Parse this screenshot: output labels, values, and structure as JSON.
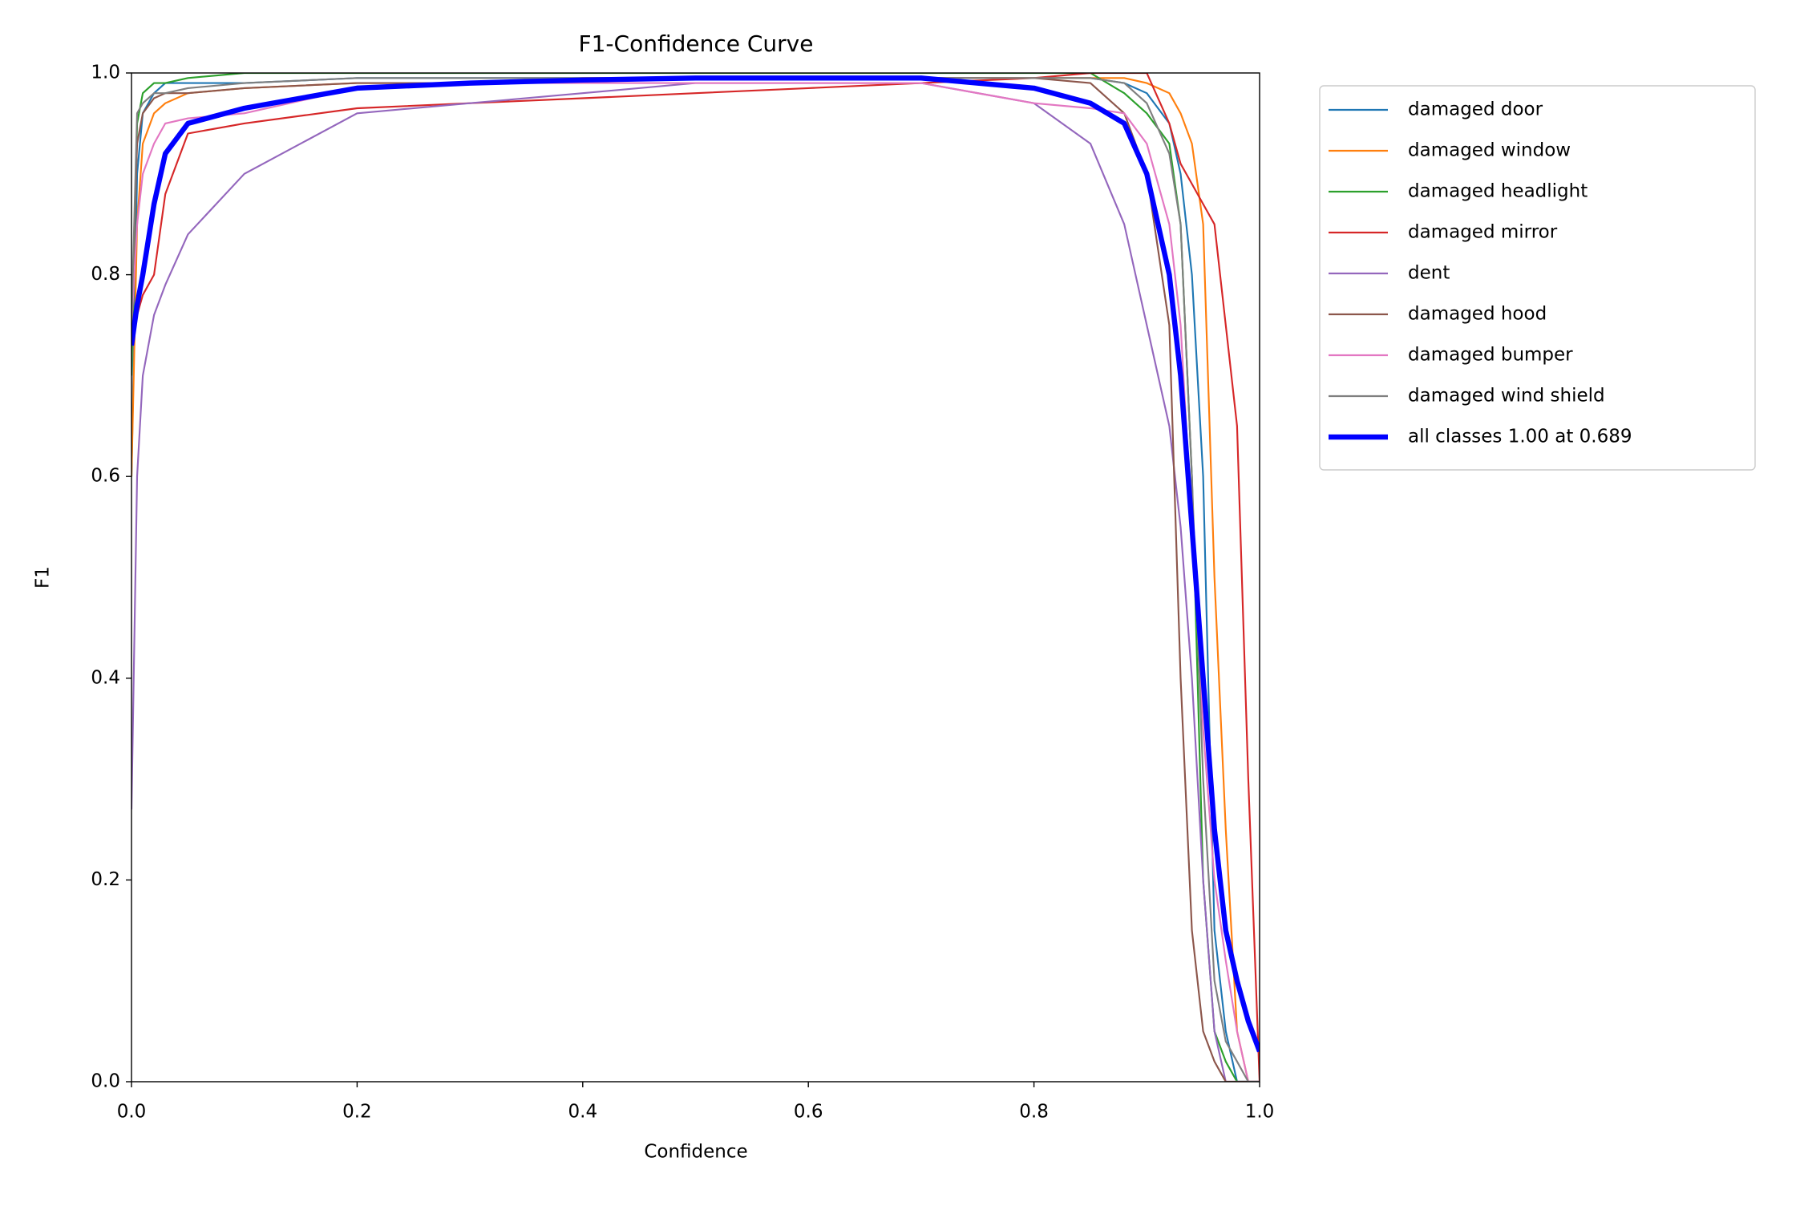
{
  "chart_data": {
    "type": "line",
    "title": "F1-Confidence Curve",
    "x_label": "Confidence",
    "y_label": "F1",
    "xlim": [
      0,
      1
    ],
    "ylim": [
      0,
      1
    ],
    "xticks": [
      {
        "value": 0,
        "label": "0.0"
      },
      {
        "value": 0.2,
        "label": "0.2"
      },
      {
        "value": 0.4,
        "label": "0.4"
      },
      {
        "value": 0.6,
        "label": "0.6"
      },
      {
        "value": 0.8,
        "label": "0.8"
      },
      {
        "value": 1,
        "label": "1.0"
      }
    ],
    "yticks": [
      {
        "value": 0,
        "label": "0.0"
      },
      {
        "value": 0.2,
        "label": "0.2"
      },
      {
        "value": 0.4,
        "label": "0.4"
      },
      {
        "value": 0.6,
        "label": "0.6"
      },
      {
        "value": 0.8,
        "label": "0.8"
      },
      {
        "value": 1,
        "label": "1.0"
      }
    ],
    "legend": "outside-upper-right",
    "x": [
      0,
      0.005,
      0.01,
      0.02,
      0.03,
      0.05,
      0.1,
      0.2,
      0.3,
      0.4,
      0.5,
      0.6,
      0.7,
      0.8,
      0.85,
      0.88,
      0.9,
      0.92,
      0.93,
      0.94,
      0.95,
      0.96,
      0.97,
      0.98,
      0.99,
      1.0
    ],
    "series": [
      {
        "name": "damaged door",
        "color": "#1f77b4",
        "width": 1.5,
        "values": [
          0.6,
          0.9,
          0.96,
          0.98,
          0.99,
          0.99,
          0.99,
          0.995,
          0.995,
          0.995,
          0.995,
          0.995,
          0.995,
          0.995,
          0.995,
          0.99,
          0.98,
          0.95,
          0.9,
          0.8,
          0.6,
          0.15,
          0.05,
          0,
          0,
          0
        ]
      },
      {
        "name": "damaged window",
        "color": "#ff7f0e",
        "width": 1.5,
        "values": [
          0.6,
          0.85,
          0.93,
          0.96,
          0.97,
          0.98,
          0.985,
          0.99,
          0.99,
          0.995,
          0.995,
          0.995,
          0.995,
          0.995,
          0.995,
          0.995,
          0.99,
          0.98,
          0.96,
          0.93,
          0.85,
          0.5,
          0.25,
          0.05,
          0,
          0
        ]
      },
      {
        "name": "damaged headlight",
        "color": "#2ca02c",
        "width": 1.5,
        "values": [
          0.7,
          0.95,
          0.98,
          0.99,
          0.99,
          0.995,
          1,
          1,
          1,
          1,
          1,
          1,
          1,
          1,
          1,
          0.98,
          0.96,
          0.93,
          0.85,
          0.6,
          0.2,
          0.05,
          0.02,
          0,
          0,
          0
        ]
      },
      {
        "name": "damaged mirror",
        "color": "#d62728",
        "width": 1.5,
        "values": [
          0.75,
          0.76,
          0.78,
          0.8,
          0.88,
          0.94,
          0.95,
          0.965,
          0.97,
          0.975,
          0.98,
          0.985,
          0.99,
          0.995,
          1,
          1,
          1,
          0.95,
          0.91,
          0.89,
          0.87,
          0.85,
          0.75,
          0.65,
          0.3,
          0
        ]
      },
      {
        "name": "dent",
        "color": "#9467bd",
        "width": 1.5,
        "values": [
          0.27,
          0.6,
          0.7,
          0.76,
          0.79,
          0.84,
          0.9,
          0.96,
          0.97,
          0.98,
          0.99,
          0.99,
          0.99,
          0.97,
          0.93,
          0.85,
          0.75,
          0.65,
          0.55,
          0.4,
          0.2,
          0.05,
          0,
          0,
          0,
          0
        ]
      },
      {
        "name": "damaged hood",
        "color": "#8c564b",
        "width": 1.5,
        "values": [
          0.75,
          0.93,
          0.96,
          0.975,
          0.98,
          0.98,
          0.985,
          0.99,
          0.99,
          0.995,
          0.995,
          0.995,
          0.995,
          0.995,
          0.99,
          0.96,
          0.9,
          0.75,
          0.4,
          0.15,
          0.05,
          0.02,
          0,
          0,
          0,
          0
        ]
      },
      {
        "name": "damaged bumper",
        "color": "#e377c2",
        "width": 1.5,
        "values": [
          0.75,
          0.85,
          0.9,
          0.93,
          0.95,
          0.955,
          0.96,
          0.985,
          0.99,
          0.99,
          0.99,
          0.99,
          0.99,
          0.97,
          0.965,
          0.96,
          0.93,
          0.85,
          0.75,
          0.55,
          0.35,
          0.2,
          0.12,
          0.05,
          0,
          0
        ]
      },
      {
        "name": "damaged wind shield",
        "color": "#7f7f7f",
        "width": 1.5,
        "values": [
          0.75,
          0.96,
          0.97,
          0.98,
          0.98,
          0.985,
          0.99,
          0.995,
          0.995,
          0.995,
          0.995,
          0.995,
          0.995,
          0.995,
          0.995,
          0.99,
          0.97,
          0.92,
          0.85,
          0.6,
          0.3,
          0.1,
          0.04,
          0.02,
          0,
          0
        ]
      },
      {
        "name": "all classes 1.00 at 0.689",
        "color": "#0000ff",
        "width": 4.5,
        "values": [
          0.73,
          0.77,
          0.8,
          0.87,
          0.92,
          0.95,
          0.965,
          0.985,
          0.99,
          0.993,
          0.995,
          0.995,
          0.995,
          0.985,
          0.97,
          0.95,
          0.9,
          0.8,
          0.7,
          0.55,
          0.4,
          0.25,
          0.15,
          0.1,
          0.06,
          0.03
        ]
      }
    ]
  }
}
